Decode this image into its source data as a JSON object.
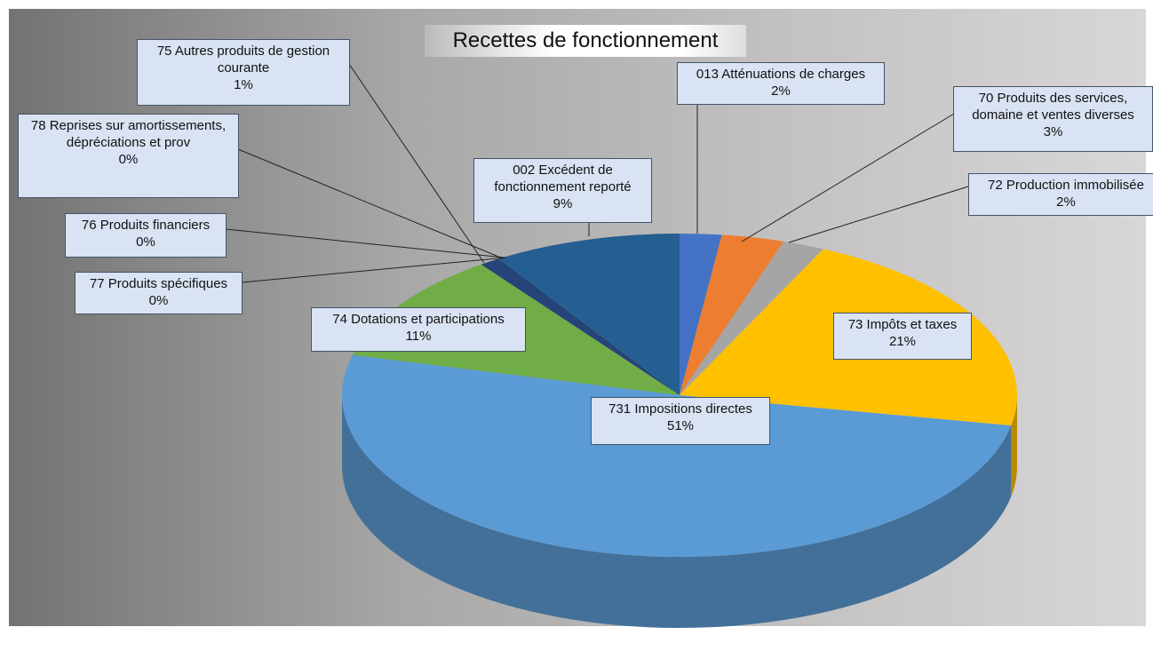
{
  "chart_data": {
    "type": "pie",
    "title": "Recettes de fonctionnement",
    "categories": [
      "013 Atténuations de charges",
      "70 Produits des services, domaine et ventes diverses",
      "72 Production immobilisée",
      "73 Impôts et taxes",
      "731 Impositions directes",
      "74 Dotations et participations",
      "77 Produits spécifiques",
      "76 Produits financiers",
      "78 Reprises sur amortissements, dépréciations et prov",
      "75 Autres produits de gestion courante",
      "002 Excédent de fonctionnement reporté"
    ],
    "values": [
      2,
      3,
      2,
      21,
      51,
      11,
      0,
      0,
      0,
      1,
      9
    ],
    "value_labels": [
      "2%",
      "3%",
      "2%",
      "21%",
      "51%",
      "11%",
      "0%",
      "0%",
      "0%",
      "1%",
      "9%"
    ],
    "colors": [
      "#4472c4",
      "#ed7d31",
      "#a5a5a5",
      "#ffc000",
      "#5b9bd5",
      "#70ad47",
      "#9e480e",
      "#636363",
      "#997300",
      "#264478",
      "#255e91"
    ]
  }
}
